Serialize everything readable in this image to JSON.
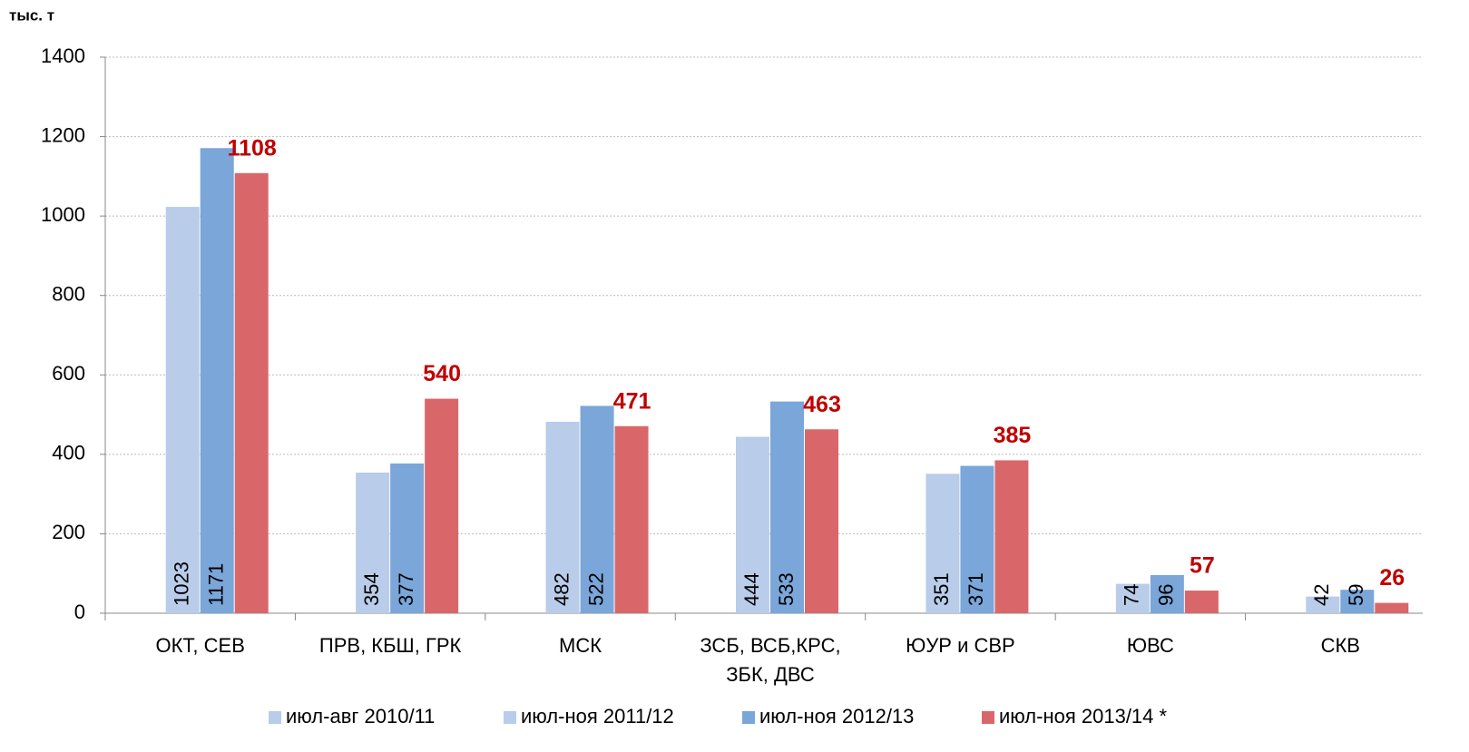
{
  "chart_data": {
    "type": "bar",
    "y_label": "тыс. т",
    "categories": [
      "ОКТ, СЕВ",
      "ПРВ, КБШ, ГРК",
      "МСК",
      "ЗСБ, ВСБ,КРС, ЗБК, ДВС",
      "ЮУР и СВР",
      "ЮВС",
      "СКВ"
    ],
    "series": [
      {
        "name": "июл-авг 2010/11",
        "color": "#b9cce9",
        "values": [
          null,
          null,
          null,
          null,
          null,
          null,
          null
        ]
      },
      {
        "name": "июл-ноя 2011/12",
        "color": "#b9cce9",
        "values": [
          1023,
          354,
          482,
          444,
          351,
          74,
          42
        ],
        "label_position": "inside-base",
        "label_color": "#000000"
      },
      {
        "name": "июл-ноя 2012/13",
        "color": "#7aa6d9",
        "values": [
          1171,
          377,
          522,
          533,
          371,
          96,
          59
        ],
        "label_position": "inside-base",
        "label_color": "#000000"
      },
      {
        "name": "июл-ноя 2013/14 *",
        "color": "#d9676a",
        "values": [
          1108,
          540,
          471,
          463,
          385,
          57,
          26
        ],
        "label_position": "outside-end",
        "label_color": "#c00000"
      }
    ],
    "ylim": [
      0,
      1400
    ],
    "yticks": [
      0,
      200,
      400,
      600,
      800,
      1000,
      1200,
      1400
    ],
    "grid": true,
    "legend": "bottom"
  }
}
